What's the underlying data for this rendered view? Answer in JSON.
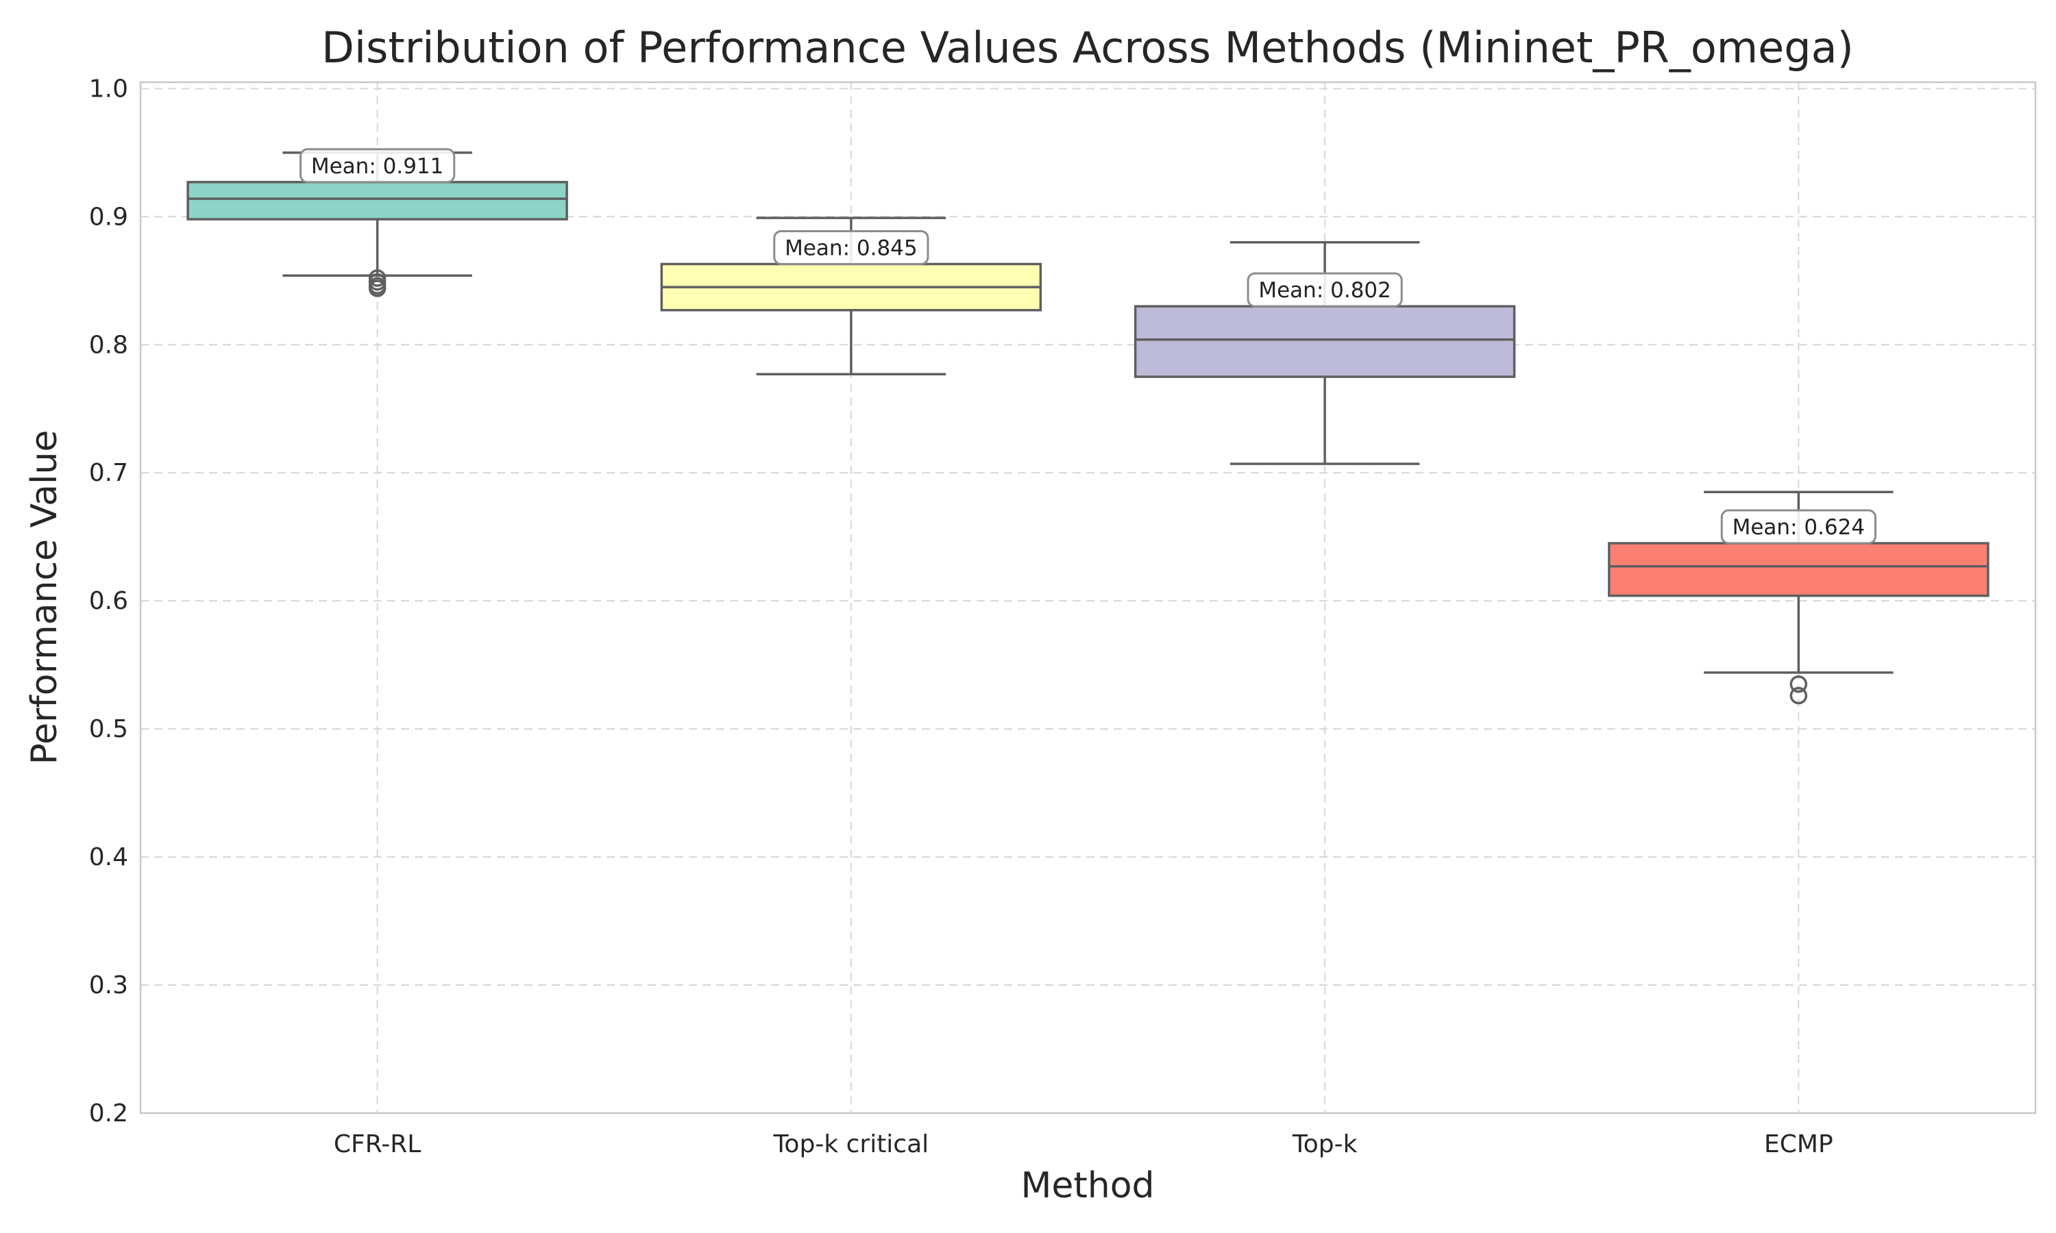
{
  "chart_data": {
    "type": "box",
    "title": "Distribution of Performance Values Across Methods (Mininet_PR_omega)",
    "xlabel": "Method",
    "ylabel": "Performance Value",
    "ylim": [
      0.2,
      1.0
    ],
    "yticks": [
      "0.2",
      "0.3",
      "0.4",
      "0.5",
      "0.6",
      "0.7",
      "0.8",
      "0.9",
      "1.0"
    ],
    "grid": true,
    "categories": [
      "CFR-RL",
      "Top-k critical",
      "Top-k",
      "ECMP"
    ],
    "series": [
      {
        "category": "CFR-RL",
        "color": "#8dd3c7",
        "whisker_low": 0.854,
        "q1": 0.898,
        "median": 0.914,
        "q3": 0.927,
        "whisker_high": 0.95,
        "outliers": [
          0.852,
          0.849,
          0.846,
          0.844
        ],
        "mean_label": "Mean: 0.911"
      },
      {
        "category": "Top-k critical",
        "color": "#ffffb3",
        "whisker_low": 0.777,
        "q1": 0.827,
        "median": 0.845,
        "q3": 0.863,
        "whisker_high": 0.899,
        "outliers": [],
        "mean_label": "Mean: 0.845"
      },
      {
        "category": "Top-k",
        "color": "#bebada",
        "whisker_low": 0.707,
        "q1": 0.775,
        "median": 0.804,
        "q3": 0.83,
        "whisker_high": 0.88,
        "outliers": [],
        "mean_label": "Mean: 0.802"
      },
      {
        "category": "ECMP",
        "color": "#fb8072",
        "whisker_low": 0.544,
        "q1": 0.604,
        "median": 0.627,
        "q3": 0.645,
        "whisker_high": 0.685,
        "outliers": [
          0.535,
          0.526
        ],
        "mean_label": "Mean: 0.624"
      }
    ]
  }
}
